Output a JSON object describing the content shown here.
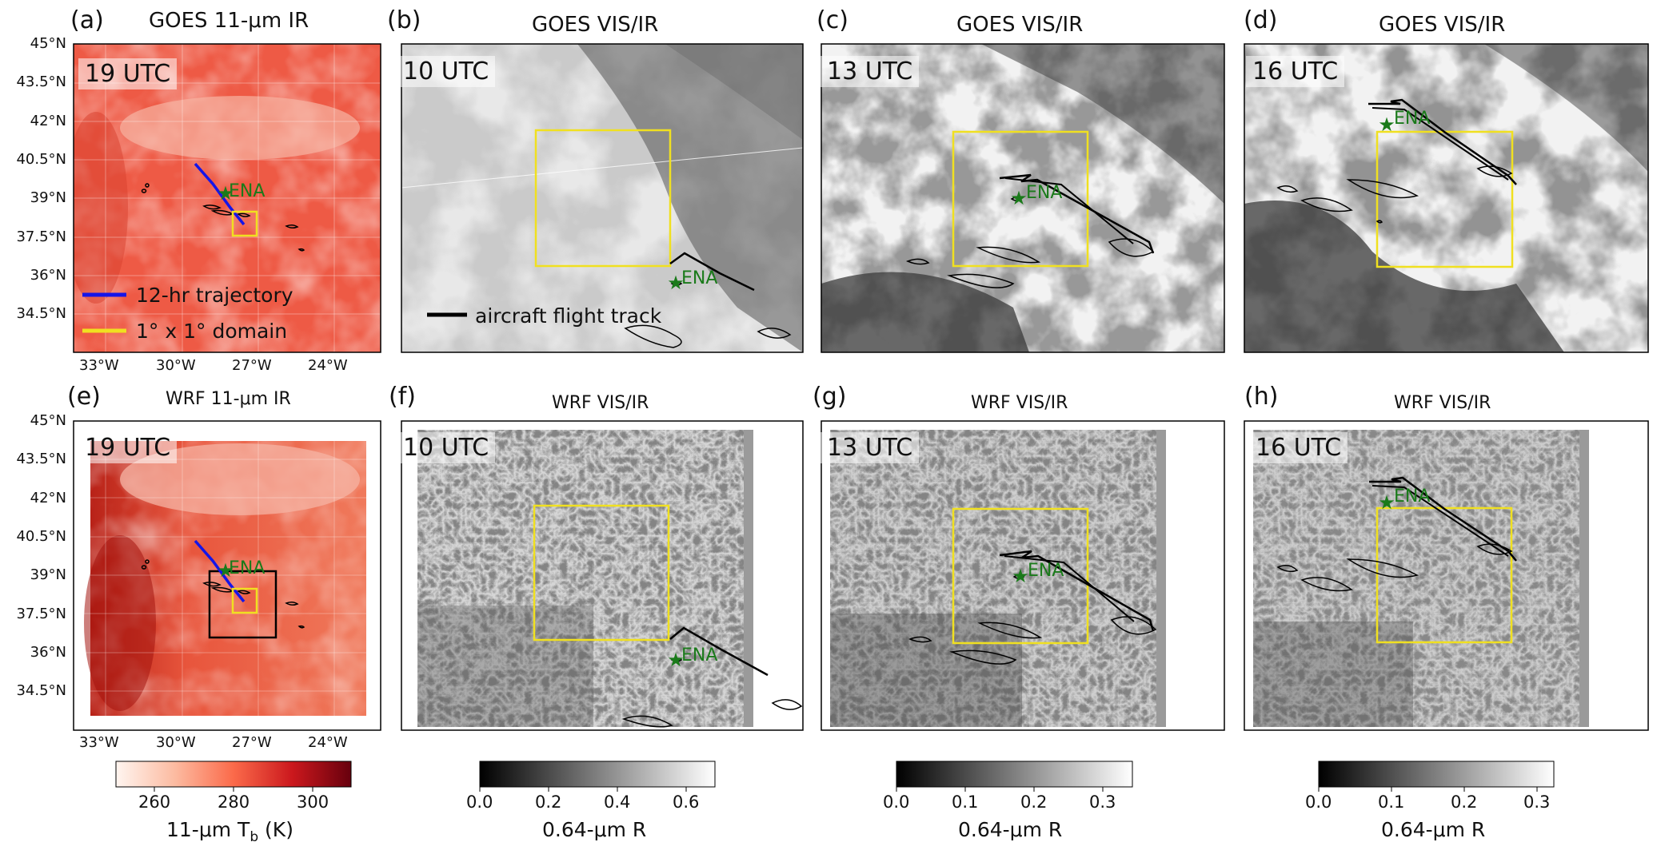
{
  "panels": [
    {
      "tag": "(a)",
      "title": "GOES 11-μm IR",
      "time": "19 UTC"
    },
    {
      "tag": "(b)",
      "title": "GOES VIS/IR",
      "time": "10 UTC"
    },
    {
      "tag": "(c)",
      "title": "GOES VIS/IR",
      "time": "13 UTC"
    },
    {
      "tag": "(d)",
      "title": "GOES VIS/IR",
      "time": "16 UTC"
    },
    {
      "tag": "(e)",
      "title": "WRF 11-μm IR",
      "time": "19 UTC"
    },
    {
      "tag": "(f)",
      "title": "WRF VIS/IR",
      "time": "10 UTC"
    },
    {
      "tag": "(g)",
      "title": "WRF VIS/IR",
      "time": "13 UTC"
    },
    {
      "tag": "(h)",
      "title": "WRF VIS/IR",
      "time": "16 UTC"
    }
  ],
  "lat_ticks": [
    "45°N",
    "43.5°N",
    "42°N",
    "40.5°N",
    "39°N",
    "37.5°N",
    "36°N",
    "34.5°N"
  ],
  "lon_ticks": [
    "33°W",
    "30°W",
    "27°W",
    "24°W"
  ],
  "site_label": "ENA",
  "legend": {
    "trajectory": "12-hr trajectory",
    "domain": "1° x 1° domain",
    "flight": "aircraft flight track"
  },
  "colors": {
    "trajectory": "#1515e8",
    "domain": "#f0e020",
    "flight": "#000000",
    "site": "#1a7a1a"
  },
  "colorbars": [
    {
      "label": "11-μm T",
      "subscript": "b",
      "units": " (K)",
      "ticks": [
        "260",
        "280",
        "300"
      ],
      "colormap": "Reds"
    },
    {
      "label": "0.64-μm R",
      "ticks": [
        "0.0",
        "0.2",
        "0.4",
        "0.6"
      ],
      "colormap": "Greys"
    },
    {
      "label": "0.64-μm R",
      "ticks": [
        "0.0",
        "0.1",
        "0.2",
        "0.3"
      ],
      "colormap": "Greys"
    },
    {
      "label": "0.64-μm R",
      "ticks": [
        "0.0",
        "0.1",
        "0.2",
        "0.3"
      ],
      "colormap": "Greys"
    }
  ]
}
